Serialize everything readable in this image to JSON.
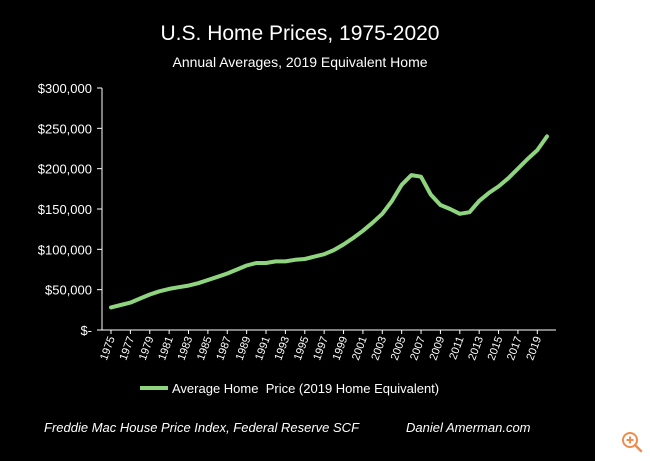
{
  "colors": {
    "background": "#000000",
    "line": "#8fd47e",
    "text": "#ffffff",
    "axis": "#ffffff",
    "zoom_icon": "#f28c4c"
  },
  "icons": {
    "zoom": "zoom-in-icon"
  },
  "footer": {
    "source": "Freddie Mac House Price Index, Federal Reserve SCF",
    "author": "Daniel Amerman.com"
  },
  "chart_data": {
    "type": "line",
    "title": "U.S. Home Prices, 1975-2020",
    "subtitle": "Annual Averages, 2019 Equivalent Home",
    "xlabel": "",
    "ylabel": "",
    "ylim": [
      0,
      300000
    ],
    "yticks": [
      0,
      50000,
      100000,
      150000,
      200000,
      250000,
      300000
    ],
    "ytick_labels": [
      "$-",
      "$50,000",
      "$100,000",
      "$150,000",
      "$200,000",
      "$250,000",
      "$300,000"
    ],
    "xtick_labels": [
      "1975",
      "1977",
      "1979",
      "1981",
      "1983",
      "1985",
      "1987",
      "1989",
      "1991",
      "1993",
      "1995",
      "1997",
      "1999",
      "2001",
      "2003",
      "2005",
      "2007",
      "2009",
      "2011",
      "2013",
      "2015",
      "2017",
      "2019"
    ],
    "legend": "bottom",
    "grid": false,
    "x": [
      1975,
      1976,
      1977,
      1978,
      1979,
      1980,
      1981,
      1982,
      1983,
      1984,
      1985,
      1986,
      1987,
      1988,
      1989,
      1990,
      1991,
      1992,
      1993,
      1994,
      1995,
      1996,
      1997,
      1998,
      1999,
      2000,
      2001,
      2002,
      2003,
      2004,
      2005,
      2006,
      2007,
      2008,
      2009,
      2010,
      2011,
      2012,
      2013,
      2014,
      2015,
      2016,
      2017,
      2018,
      2019,
      2020
    ],
    "series": [
      {
        "name": "Average Home  Price (2019 Home Equivalent)",
        "values": [
          28000,
          31000,
          34000,
          39000,
          44000,
          48000,
          51000,
          53000,
          55000,
          58000,
          62000,
          66000,
          70000,
          75000,
          80000,
          83000,
          83000,
          85000,
          85000,
          87000,
          88000,
          91000,
          94000,
          99000,
          106000,
          114000,
          123000,
          133000,
          144000,
          160000,
          180000,
          192000,
          190000,
          168000,
          155000,
          150000,
          144000,
          146000,
          160000,
          170000,
          178000,
          188000,
          200000,
          212000,
          223000,
          240000
        ]
      }
    ]
  }
}
